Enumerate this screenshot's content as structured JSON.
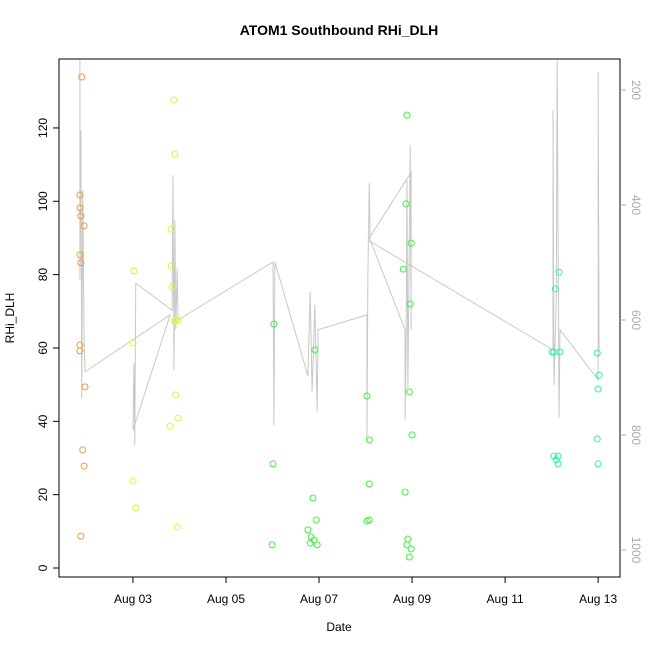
{
  "chart_data": {
    "type": "scatter",
    "title": "ATOM1 Southbound RHi_DLH",
    "x_label": "Date",
    "y_label": "RHi_DLH",
    "xlim": [
      1.41,
      13.47
    ],
    "xticks": [
      {
        "value": 3,
        "label": "Aug 03"
      },
      {
        "value": 5,
        "label": "Aug 05"
      },
      {
        "value": 7,
        "label": "Aug 07"
      },
      {
        "value": 9,
        "label": "Aug 09"
      },
      {
        "value": 11,
        "label": "Aug 11"
      },
      {
        "value": 13,
        "label": "Aug 13"
      }
    ],
    "ylim": [
      -2.45,
      138.8
    ],
    "yticks": [
      0,
      20,
      40,
      60,
      80,
      100,
      120
    ],
    "y2lim": [
      1047,
      146
    ],
    "y2ticks": [
      200,
      400,
      600,
      800,
      1000
    ],
    "grid": false,
    "series": [
      {
        "color": "#eb9a3c",
        "x": [
          1.9,
          1.86,
          1.86,
          1.88,
          1.95,
          1.86,
          1.88,
          1.86,
          1.86,
          1.97,
          1.92,
          1.95,
          1.88
        ],
        "values": [
          133.9,
          101.7,
          98.2,
          96.0,
          93.3,
          85.4,
          83.2,
          60.8,
          59.2,
          49.4,
          32.2,
          27.8,
          8.7
        ]
      },
      {
        "color": "#e2f03c",
        "x": [
          3.02,
          3.0,
          3.0,
          3.06,
          3.88,
          3.9,
          3.82,
          3.82,
          3.84,
          3.92,
          3.97,
          3.88,
          3.92,
          3.8,
          3.97,
          3.95
        ],
        "values": [
          81.0,
          61.4,
          23.7,
          16.4,
          127.6,
          112.9,
          92.4,
          82.4,
          76.6,
          67.4,
          67.6,
          67.4,
          47.2,
          38.7,
          40.9,
          11.2
        ]
      },
      {
        "color": "#40f040",
        "x": [
          6.03,
          6.01,
          5.99,
          6.91,
          6.76,
          6.87,
          6.83,
          6.81,
          6.94,
          6.96,
          6.89,
          8.03,
          8.08,
          8.08,
          8.03,
          8.08,
          8.89,
          8.87,
          8.98,
          8.81,
          8.96,
          8.94,
          9.0,
          8.85,
          8.91,
          8.89,
          8.98,
          8.94
        ],
        "values": [
          66.5,
          28.4,
          6.3,
          59.5,
          10.4,
          19.1,
          8.5,
          6.8,
          13.1,
          6.3,
          7.6,
          46.9,
          34.9,
          22.9,
          12.8,
          13.1,
          123.5,
          99.3,
          88.6,
          81.5,
          72.0,
          48.0,
          36.3,
          20.7,
          7.9,
          6.3,
          5.2,
          3.0
        ]
      },
      {
        "color": "#30f0a8",
        "x": [
          12.01,
          12.05,
          12.08,
          12.16,
          12.18,
          12.05,
          12.14,
          12.1,
          12.14,
          12.98,
          13.02,
          13.0,
          12.98,
          13.0
        ],
        "values": [
          58.9,
          58.9,
          76.1,
          80.7,
          58.9,
          30.5,
          30.5,
          29.5,
          28.4,
          58.6,
          52.6,
          48.8,
          35.2,
          28.4
        ]
      },
      {
        "type": "line",
        "axis": "y2",
        "color": "#c8c8c8",
        "x": [
          1.86,
          1.86,
          1.88,
          1.9,
          1.92,
          1.95,
          1.97,
          3.8,
          3.0,
          3.02,
          3.04,
          3.06,
          3.84,
          3.86,
          3.88,
          3.9,
          3.92,
          3.95,
          3.97,
          6.01,
          6.03,
          6.05,
          6.76,
          6.81,
          6.85,
          6.91,
          6.96,
          6.98,
          8.03,
          8.03,
          8.05,
          8.08,
          8.1,
          8.85,
          8.85,
          8.87,
          8.89,
          8.91,
          8.96,
          8.98,
          8.98,
          8.05,
          12.03,
          12.03,
          12.05,
          12.1,
          12.12,
          12.16,
          12.18,
          13.0,
          13.0,
          13.02
        ],
        "values": [
          148,
          530,
          270,
          736,
          374,
          635,
          690,
          591,
          791,
          675,
          817,
          536,
          583,
          348,
          687,
          426,
          617,
          510,
          600,
          499,
          783,
          499,
          697,
          551,
          725,
          574,
          760,
          617,
          591,
          809,
          522,
          362,
          461,
          617,
          774,
          652,
          357,
          722,
          296,
          617,
          343,
          461,
          652,
          235,
          713,
          565,
          148,
          770,
          617,
          704,
          169,
          652
        ]
      }
    ]
  }
}
